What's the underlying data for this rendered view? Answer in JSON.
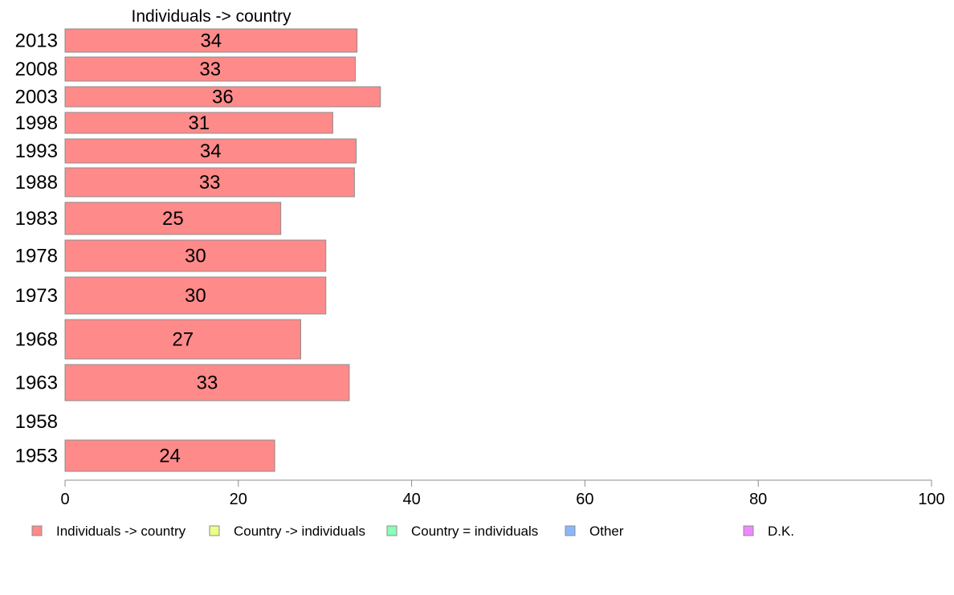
{
  "chart_data": {
    "type": "bar",
    "orientation": "horizontal",
    "title": "Individuals -> country",
    "xlim": [
      0,
      100
    ],
    "x_ticks": [
      0,
      20,
      40,
      60,
      80,
      100
    ],
    "grid": false,
    "legend_position": "bottom",
    "categories": [
      "2013",
      "2008",
      "2003",
      "1998",
      "1993",
      "1988",
      "1983",
      "1978",
      "1973",
      "1968",
      "1963",
      "1958",
      "1953"
    ],
    "series": [
      {
        "name": "Individuals -> country",
        "color": "#ff8a8a",
        "values": [
          34,
          33,
          36,
          31,
          34,
          33,
          25,
          30,
          30,
          27,
          33,
          null,
          24
        ],
        "exact_values": [
          33.7,
          33.5,
          36.4,
          30.9,
          33.6,
          33.4,
          24.9,
          30.1,
          30.1,
          27.2,
          32.8,
          null,
          24.2
        ]
      }
    ],
    "legend": [
      {
        "label": "Individuals -> country",
        "color": "#ff8a8a"
      },
      {
        "label": "Country -> individuals",
        "color": "#ecff8a"
      },
      {
        "label": "Country = individuals",
        "color": "#8affb8"
      },
      {
        "label": "Other",
        "color": "#8ab8ff"
      },
      {
        "label": "D.K.",
        "color": "#ee8aff"
      }
    ]
  }
}
